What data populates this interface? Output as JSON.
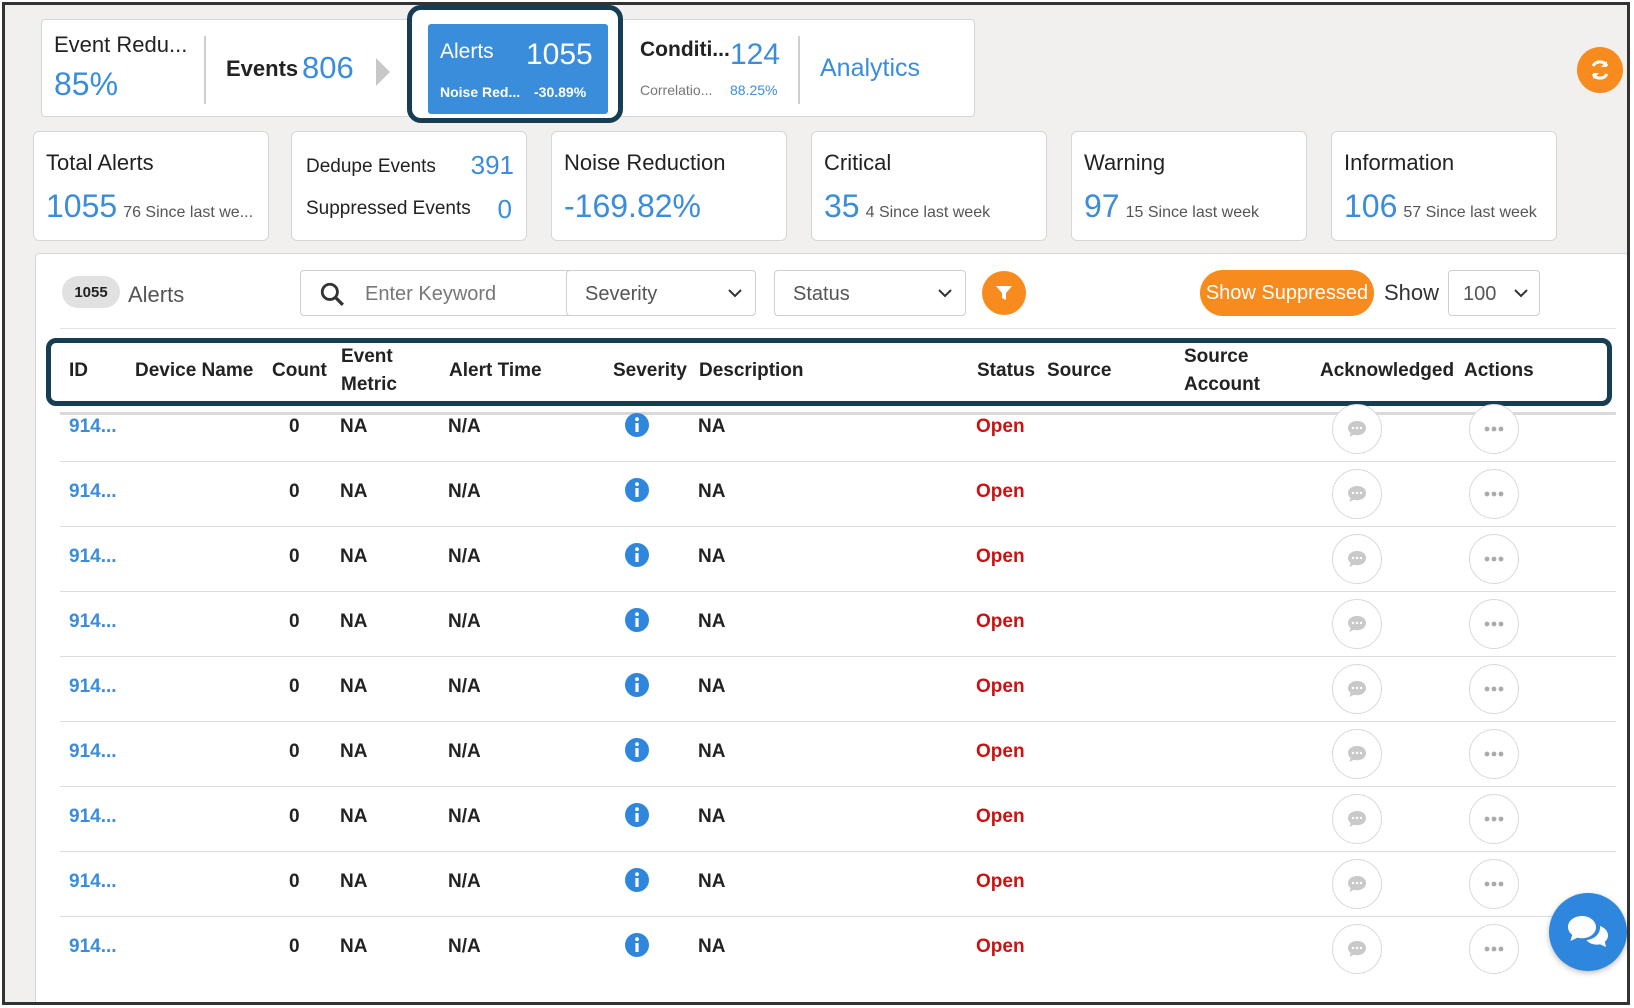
{
  "pipeline": {
    "event_reduction": {
      "label": "Event Redu...",
      "value": "85%"
    },
    "events": {
      "label": "Events",
      "value": "806"
    },
    "alerts": {
      "label": "Alerts",
      "value": "1055",
      "sub_label": "Noise Red...",
      "sub_value": "-30.89%"
    },
    "conditions": {
      "label": "Conditi...",
      "value": "124",
      "sub_label": "Correlatio...",
      "sub_value": "88.25%"
    },
    "analytics": {
      "label": "Analytics"
    }
  },
  "cards": {
    "total_alerts": {
      "title": "Total Alerts",
      "value": "1055",
      "sub": "76 Since last we..."
    },
    "dedupe": {
      "dedupe_label": "Dedupe Events",
      "dedupe_value": "391",
      "suppressed_label": "Suppressed Events",
      "suppressed_value": "0"
    },
    "noise_reduction": {
      "title": "Noise Reduction",
      "value": "-169.82%"
    },
    "critical": {
      "title": "Critical",
      "value": "35",
      "sub": "4 Since last week"
    },
    "warning": {
      "title": "Warning",
      "value": "97",
      "sub": "15 Since last week"
    },
    "information": {
      "title": "Information",
      "value": "106",
      "sub": "57 Since last week"
    }
  },
  "toolbar": {
    "count": "1055",
    "count_label": "Alerts",
    "search_placeholder": "Enter Keyword",
    "severity_label": "Severity",
    "status_label": "Status",
    "show_suppressed_label": "Show Suppressed",
    "show_label": "Show",
    "page_size": "100"
  },
  "table": {
    "headers": {
      "id": "ID",
      "device_name": "Device Name",
      "count": "Count",
      "event_metric_1": "Event",
      "event_metric_2": "Metric",
      "alert_time": "Alert Time",
      "severity": "Severity",
      "description": "Description",
      "status": "Status",
      "source": "Source",
      "source_account_1": "Source",
      "source_account_2": "Account",
      "acknowledged": "Acknowledged",
      "actions": "Actions"
    },
    "rows": [
      {
        "id": "914...",
        "count": "0",
        "metric": "NA",
        "time": "N/A",
        "severity": "info",
        "desc": "NA",
        "status": "Open"
      },
      {
        "id": "914...",
        "count": "0",
        "metric": "NA",
        "time": "N/A",
        "severity": "info",
        "desc": "NA",
        "status": "Open"
      },
      {
        "id": "914...",
        "count": "0",
        "metric": "NA",
        "time": "N/A",
        "severity": "info",
        "desc": "NA",
        "status": "Open"
      },
      {
        "id": "914...",
        "count": "0",
        "metric": "NA",
        "time": "N/A",
        "severity": "info",
        "desc": "NA",
        "status": "Open"
      },
      {
        "id": "914...",
        "count": "0",
        "metric": "NA",
        "time": "N/A",
        "severity": "info",
        "desc": "NA",
        "status": "Open"
      },
      {
        "id": "914...",
        "count": "0",
        "metric": "NA",
        "time": "N/A",
        "severity": "info",
        "desc": "NA",
        "status": "Open"
      },
      {
        "id": "914...",
        "count": "0",
        "metric": "NA",
        "time": "N/A",
        "severity": "info",
        "desc": "NA",
        "status": "Open"
      },
      {
        "id": "914...",
        "count": "0",
        "metric": "NA",
        "time": "N/A",
        "severity": "info",
        "desc": "NA",
        "status": "Open"
      },
      {
        "id": "914...",
        "count": "0",
        "metric": "NA",
        "time": "N/A",
        "severity": "info",
        "desc": "NA",
        "status": "Open"
      }
    ]
  },
  "colors": {
    "accent_blue": "#3a8ddb",
    "accent_orange": "#f78b1e",
    "status_open": "#cc1111",
    "highlight_border": "#163d52"
  },
  "icons": {
    "refresh": "refresh-icon",
    "search": "search-icon",
    "filter": "filter-icon",
    "severity": "info-icon",
    "acknowledge": "comment-icon",
    "actions": "more-icon",
    "chat": "chat-icon"
  }
}
